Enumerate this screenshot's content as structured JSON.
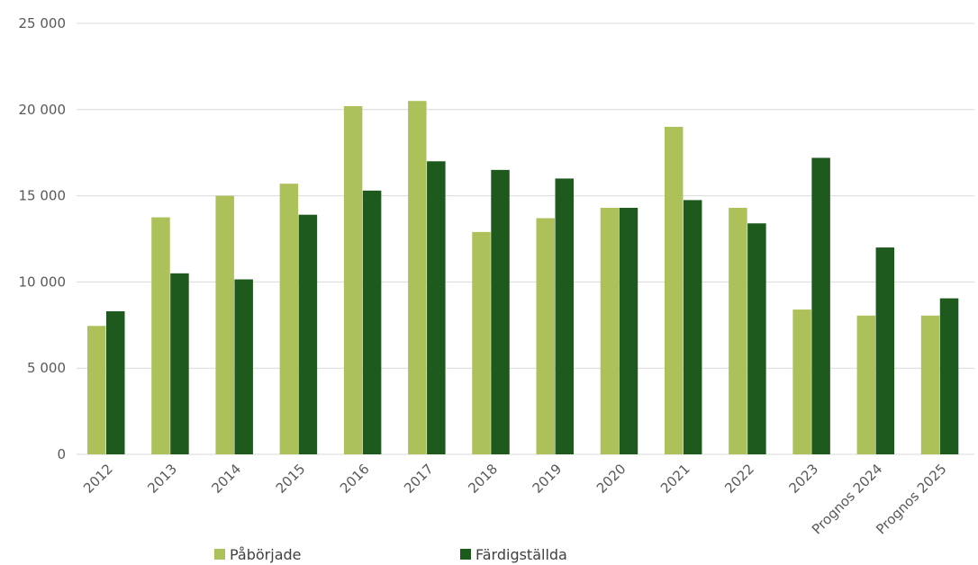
{
  "chart_data": {
    "type": "bar",
    "categories": [
      "2012",
      "2013",
      "2014",
      "2015",
      "2016",
      "2017",
      "2018",
      "2019",
      "2020",
      "2021",
      "2022",
      "2023",
      "Prognos 2024",
      "Prognos 2025"
    ],
    "series": [
      {
        "name": "Påbörjade",
        "color": "#adc15a",
        "values": [
          7450,
          13750,
          15000,
          15700,
          20200,
          20500,
          12900,
          13700,
          14300,
          19000,
          14300,
          8400,
          8050,
          8050
        ]
      },
      {
        "name": "Färdigställda",
        "color": "#1e5a1e",
        "values": [
          8300,
          10500,
          10150,
          13900,
          15300,
          17000,
          16500,
          16000,
          14300,
          14750,
          13400,
          17200,
          12000,
          9050
        ]
      }
    ],
    "yticks": [
      "0",
      "5 000",
      "10 000",
      "15 000",
      "20 000",
      "25 000"
    ],
    "ylim": [
      0,
      25000
    ],
    "grid": true,
    "legend_position": "bottom"
  }
}
